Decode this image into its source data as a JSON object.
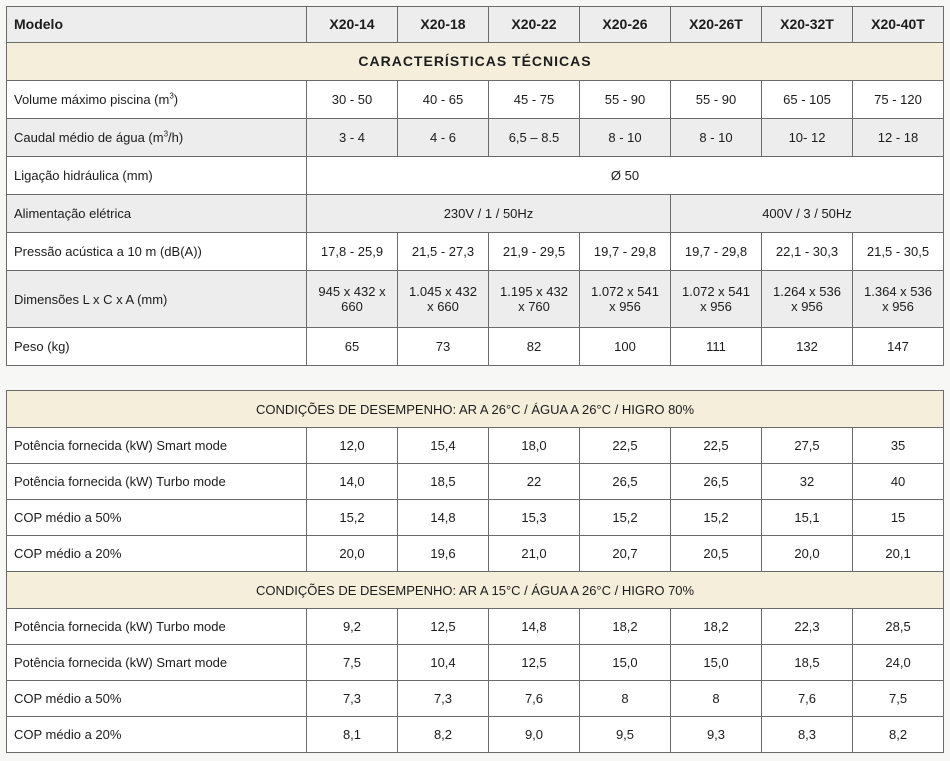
{
  "header": {
    "label": "Modelo",
    "models": [
      "X20-14",
      "X20-18",
      "X20-22",
      "X20-26",
      "X20-26T",
      "X20-32T",
      "X20-40T"
    ]
  },
  "tech_section": "CARACTERÍSTICAS TÉCNICAS",
  "volume": {
    "label_pre": "Volume máximo piscina (m",
    "label_sup": "3",
    "label_post": ")",
    "values": [
      "30 - 50",
      "40 - 65",
      "45 - 75",
      "55 - 90",
      "55 - 90",
      "65 - 105",
      "75 - 120"
    ]
  },
  "caudal": {
    "label_pre": "Caudal médio de água (m",
    "label_sup": "3",
    "label_post": "/h)",
    "values": [
      "3 - 4",
      "4 - 6",
      "6,5 – 8.5",
      "8 - 10",
      "8 - 10",
      "10- 12",
      "12 - 18"
    ]
  },
  "ligacao": {
    "label": "Ligação hidráulica (mm)",
    "value": "Ø 50"
  },
  "alimentacao": {
    "label": "Alimentação elétrica",
    "single_phase": "230V / 1 / 50Hz",
    "three_phase": "400V / 3 / 50Hz"
  },
  "pressao": {
    "label": "Pressão acústica a 10 m (dB(A))",
    "values": [
      "17,8 - 25,9",
      "21,5 - 27,3",
      "21,9 - 29,5",
      "19,7 - 29,8",
      "19,7 - 29,8",
      "22,1 - 30,3",
      "21,5 - 30,5"
    ]
  },
  "dimensoes": {
    "label": "Dimensões L x C x A (mm)",
    "values": [
      [
        "945 x 432 x 660"
      ],
      [
        "1.045 x 432",
        "x 660"
      ],
      [
        "1.195 x 432",
        "x 760"
      ],
      [
        "1.072 x 541",
        "x 956"
      ],
      [
        "1.072 x 541",
        "x 956"
      ],
      [
        "1.264 x 536",
        "x 956"
      ],
      [
        "1.364 x 536",
        "x 956"
      ]
    ]
  },
  "peso": {
    "label": "Peso (kg)",
    "values": [
      "65",
      "73",
      "82",
      "100",
      "111",
      "132",
      "147"
    ]
  },
  "perf_26": {
    "title": "CONDIÇÕES DE DESEMPENHO: AR A 26°C / ÁGUA A 26°C / HIGRO 80%",
    "rows": [
      {
        "label": "Potência fornecida (kW) Smart mode",
        "values": [
          "12,0",
          "15,4",
          "18,0",
          "22,5",
          "22,5",
          "27,5",
          "35"
        ]
      },
      {
        "label": "Potência fornecida (kW) Turbo mode",
        "values": [
          "14,0",
          "18,5",
          "22",
          "26,5",
          "26,5",
          "32",
          "40"
        ]
      },
      {
        "label": "COP médio a 50%",
        "values": [
          "15,2",
          "14,8",
          "15,3",
          "15,2",
          "15,2",
          "15,1",
          "15"
        ]
      },
      {
        "label": "COP médio a 20%",
        "values": [
          "20,0",
          "19,6",
          "21,0",
          "20,7",
          "20,5",
          "20,0",
          "20,1"
        ]
      }
    ]
  },
  "perf_15": {
    "title": "CONDIÇÕES DE DESEMPENHO: AR A 15°C / ÁGUA A 26°C / HIGRO 70%",
    "rows": [
      {
        "label": "Potência fornecida (kW) Turbo mode",
        "values": [
          "9,2",
          "12,5",
          "14,8",
          "18,2",
          "18,2",
          "22,3",
          "28,5"
        ]
      },
      {
        "label": "Potência fornecida (kW) Smart mode",
        "values": [
          "7,5",
          "10,4",
          "12,5",
          "15,0",
          "15,0",
          "18,5",
          "24,0"
        ]
      },
      {
        "label": "COP médio a 50%",
        "values": [
          "7,3",
          "7,3",
          "7,6",
          "8",
          "8",
          "7,6",
          "7,5"
        ]
      },
      {
        "label": "COP médio a 20%",
        "values": [
          "8,1",
          "8,2",
          "9,0",
          "9,5",
          "9,3",
          "8,3",
          "8,2"
        ]
      }
    ]
  }
}
